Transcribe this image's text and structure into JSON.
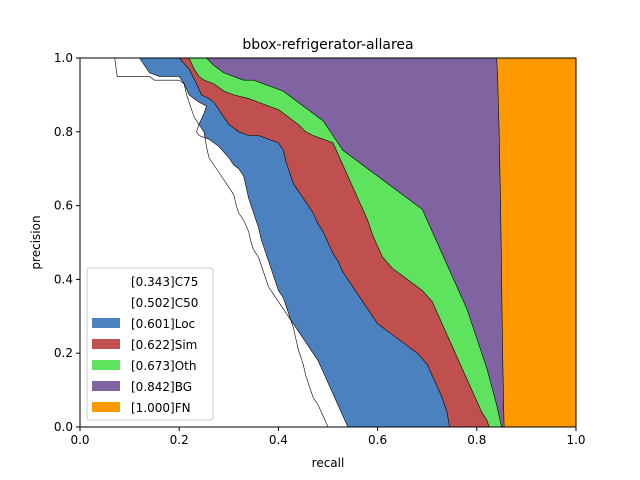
{
  "chart_data": {
    "type": "area",
    "title": "bbox-refrigerator-allarea",
    "xlabel": "recall",
    "ylabel": "precision",
    "xlim": [
      0,
      1
    ],
    "ylim": [
      0,
      1
    ],
    "x_ticks": [
      "0.0",
      "0.2",
      "0.4",
      "0.6",
      "0.8",
      "1.0"
    ],
    "y_ticks": [
      "0.0",
      "0.2",
      "0.4",
      "0.6",
      "0.8",
      "1.0"
    ],
    "grid": false,
    "legend_position": "lower-left",
    "series": [
      {
        "name": "[0.343]C75",
        "color": "#ffffff",
        "points": [
          [
            0,
            1
          ],
          [
            0.07,
            1
          ],
          [
            0.075,
            0.95
          ],
          [
            0.14,
            0.95
          ],
          [
            0.15,
            0.94
          ],
          [
            0.2,
            0.94
          ],
          [
            0.21,
            0.93
          ],
          [
            0.22,
            0.9
          ],
          [
            0.23,
            0.89
          ],
          [
            0.24,
            0.88
          ],
          [
            0.255,
            0.87
          ],
          [
            0.25,
            0.85
          ],
          [
            0.24,
            0.82
          ],
          [
            0.235,
            0.8
          ],
          [
            0.24,
            0.79
          ],
          [
            0.26,
            0.78
          ],
          [
            0.28,
            0.76
          ],
          [
            0.3,
            0.73
          ],
          [
            0.31,
            0.71
          ],
          [
            0.32,
            0.7
          ],
          [
            0.33,
            0.68
          ],
          [
            0.335,
            0.65
          ],
          [
            0.34,
            0.62
          ],
          [
            0.345,
            0.6
          ],
          [
            0.35,
            0.58
          ],
          [
            0.355,
            0.56
          ],
          [
            0.36,
            0.54
          ],
          [
            0.365,
            0.51
          ],
          [
            0.37,
            0.49
          ],
          [
            0.375,
            0.47
          ],
          [
            0.38,
            0.45
          ],
          [
            0.385,
            0.43
          ],
          [
            0.39,
            0.41
          ],
          [
            0.395,
            0.39
          ],
          [
            0.4,
            0.37
          ],
          [
            0.41,
            0.35
          ],
          [
            0.415,
            0.33
          ],
          [
            0.42,
            0.31
          ],
          [
            0.425,
            0.29
          ],
          [
            0.43,
            0.27
          ],
          [
            0.435,
            0.24
          ],
          [
            0.44,
            0.21
          ],
          [
            0.445,
            0.19
          ],
          [
            0.45,
            0.17
          ],
          [
            0.455,
            0.14
          ],
          [
            0.46,
            0.12
          ],
          [
            0.465,
            0.1
          ],
          [
            0.47,
            0.08
          ],
          [
            0.48,
            0.06
          ],
          [
            0.49,
            0.03
          ],
          [
            0.5,
            0
          ]
        ]
      },
      {
        "name": "[0.502]C50",
        "color": "#ffffff",
        "points": [
          [
            0,
            1
          ],
          [
            0.08,
            1
          ],
          [
            0.12,
            1
          ],
          [
            0.14,
            0.96
          ],
          [
            0.16,
            0.95
          ],
          [
            0.2,
            0.95
          ],
          [
            0.21,
            0.93
          ],
          [
            0.215,
            0.9
          ],
          [
            0.22,
            0.88
          ],
          [
            0.23,
            0.84
          ],
          [
            0.24,
            0.82
          ],
          [
            0.25,
            0.8
          ],
          [
            0.255,
            0.76
          ],
          [
            0.26,
            0.73
          ],
          [
            0.27,
            0.71
          ],
          [
            0.28,
            0.69
          ],
          [
            0.29,
            0.67
          ],
          [
            0.3,
            0.65
          ],
          [
            0.31,
            0.63
          ],
          [
            0.315,
            0.6
          ],
          [
            0.32,
            0.58
          ],
          [
            0.33,
            0.56
          ],
          [
            0.34,
            0.53
          ],
          [
            0.345,
            0.5
          ],
          [
            0.35,
            0.48
          ],
          [
            0.36,
            0.46
          ],
          [
            0.365,
            0.44
          ],
          [
            0.37,
            0.42
          ],
          [
            0.375,
            0.4
          ],
          [
            0.38,
            0.38
          ],
          [
            0.39,
            0.36
          ],
          [
            0.4,
            0.34
          ],
          [
            0.41,
            0.32
          ],
          [
            0.42,
            0.3
          ],
          [
            0.43,
            0.28
          ],
          [
            0.44,
            0.26
          ],
          [
            0.45,
            0.24
          ],
          [
            0.46,
            0.22
          ],
          [
            0.47,
            0.2
          ],
          [
            0.48,
            0.18
          ],
          [
            0.49,
            0.15
          ],
          [
            0.5,
            0.12
          ],
          [
            0.51,
            0.09
          ],
          [
            0.52,
            0.06
          ],
          [
            0.53,
            0.03
          ],
          [
            0.54,
            0
          ]
        ]
      },
      {
        "name": "[0.601]Loc",
        "color": "#4c81bf",
        "points": [
          [
            0,
            1
          ],
          [
            0.2,
            1
          ],
          [
            0.22,
            0.97
          ],
          [
            0.235,
            0.93
          ],
          [
            0.245,
            0.9
          ],
          [
            0.26,
            0.89
          ],
          [
            0.27,
            0.88
          ],
          [
            0.28,
            0.86
          ],
          [
            0.29,
            0.84
          ],
          [
            0.3,
            0.82
          ],
          [
            0.32,
            0.8
          ],
          [
            0.34,
            0.79
          ],
          [
            0.36,
            0.79
          ],
          [
            0.38,
            0.78
          ],
          [
            0.4,
            0.77
          ],
          [
            0.41,
            0.75
          ],
          [
            0.415,
            0.72
          ],
          [
            0.42,
            0.7
          ],
          [
            0.425,
            0.68
          ],
          [
            0.43,
            0.66
          ],
          [
            0.44,
            0.64
          ],
          [
            0.45,
            0.62
          ],
          [
            0.46,
            0.6
          ],
          [
            0.47,
            0.58
          ],
          [
            0.48,
            0.55
          ],
          [
            0.49,
            0.53
          ],
          [
            0.5,
            0.5
          ],
          [
            0.51,
            0.47
          ],
          [
            0.52,
            0.45
          ],
          [
            0.53,
            0.42
          ],
          [
            0.54,
            0.4
          ],
          [
            0.55,
            0.38
          ],
          [
            0.56,
            0.36
          ],
          [
            0.57,
            0.34
          ],
          [
            0.58,
            0.32
          ],
          [
            0.59,
            0.3
          ],
          [
            0.6,
            0.28
          ],
          [
            0.62,
            0.26
          ],
          [
            0.64,
            0.24
          ],
          [
            0.66,
            0.22
          ],
          [
            0.68,
            0.2
          ],
          [
            0.7,
            0.17
          ],
          [
            0.71,
            0.14
          ],
          [
            0.72,
            0.11
          ],
          [
            0.73,
            0.08
          ],
          [
            0.74,
            0.04
          ],
          [
            0.745,
            0
          ]
        ]
      },
      {
        "name": "[0.622]Sim",
        "color": "#c0504d",
        "points": [
          [
            0,
            1
          ],
          [
            0.22,
            1
          ],
          [
            0.23,
            0.97
          ],
          [
            0.24,
            0.95
          ],
          [
            0.25,
            0.94
          ],
          [
            0.27,
            0.93
          ],
          [
            0.29,
            0.91
          ],
          [
            0.31,
            0.9
          ],
          [
            0.34,
            0.89
          ],
          [
            0.36,
            0.88
          ],
          [
            0.38,
            0.87
          ],
          [
            0.4,
            0.86
          ],
          [
            0.42,
            0.84
          ],
          [
            0.44,
            0.82
          ],
          [
            0.455,
            0.8
          ],
          [
            0.47,
            0.79
          ],
          [
            0.49,
            0.78
          ],
          [
            0.51,
            0.77
          ],
          [
            0.52,
            0.74
          ],
          [
            0.53,
            0.71
          ],
          [
            0.54,
            0.68
          ],
          [
            0.55,
            0.65
          ],
          [
            0.56,
            0.62
          ],
          [
            0.57,
            0.59
          ],
          [
            0.58,
            0.56
          ],
          [
            0.59,
            0.52
          ],
          [
            0.6,
            0.49
          ],
          [
            0.61,
            0.46
          ],
          [
            0.63,
            0.43
          ],
          [
            0.65,
            0.41
          ],
          [
            0.67,
            0.39
          ],
          [
            0.69,
            0.37
          ],
          [
            0.71,
            0.34
          ],
          [
            0.72,
            0.31
          ],
          [
            0.73,
            0.28
          ],
          [
            0.74,
            0.25
          ],
          [
            0.75,
            0.22
          ],
          [
            0.76,
            0.19
          ],
          [
            0.77,
            0.16
          ],
          [
            0.78,
            0.13
          ],
          [
            0.79,
            0.1
          ],
          [
            0.8,
            0.07
          ],
          [
            0.81,
            0.04
          ],
          [
            0.82,
            0.02
          ],
          [
            0.825,
            0
          ]
        ]
      },
      {
        "name": "[0.673]Oth",
        "color": "#5fe35f",
        "points": [
          [
            0,
            1
          ],
          [
            0.255,
            1
          ],
          [
            0.27,
            0.98
          ],
          [
            0.29,
            0.96
          ],
          [
            0.31,
            0.95
          ],
          [
            0.33,
            0.94
          ],
          [
            0.35,
            0.94
          ],
          [
            0.37,
            0.93
          ],
          [
            0.39,
            0.92
          ],
          [
            0.41,
            0.91
          ],
          [
            0.43,
            0.89
          ],
          [
            0.45,
            0.87
          ],
          [
            0.47,
            0.85
          ],
          [
            0.49,
            0.83
          ],
          [
            0.5,
            0.81
          ],
          [
            0.51,
            0.79
          ],
          [
            0.52,
            0.77
          ],
          [
            0.53,
            0.75
          ],
          [
            0.55,
            0.73
          ],
          [
            0.57,
            0.71
          ],
          [
            0.59,
            0.69
          ],
          [
            0.61,
            0.67
          ],
          [
            0.63,
            0.65
          ],
          [
            0.65,
            0.63
          ],
          [
            0.67,
            0.61
          ],
          [
            0.69,
            0.59
          ],
          [
            0.7,
            0.56
          ],
          [
            0.71,
            0.53
          ],
          [
            0.72,
            0.5
          ],
          [
            0.73,
            0.47
          ],
          [
            0.74,
            0.44
          ],
          [
            0.75,
            0.41
          ],
          [
            0.76,
            0.38
          ],
          [
            0.77,
            0.35
          ],
          [
            0.78,
            0.32
          ],
          [
            0.79,
            0.28
          ],
          [
            0.8,
            0.24
          ],
          [
            0.81,
            0.2
          ],
          [
            0.82,
            0.16
          ],
          [
            0.83,
            0.11
          ],
          [
            0.84,
            0.06
          ],
          [
            0.85,
            0
          ]
        ]
      },
      {
        "name": "[0.842]BG",
        "color": "#8064a2",
        "points": [
          [
            0,
            1
          ],
          [
            0.84,
            1
          ],
          [
            0.842,
            0.95
          ],
          [
            0.845,
            0.8
          ],
          [
            0.848,
            0.6
          ],
          [
            0.85,
            0.4
          ],
          [
            0.852,
            0.2
          ],
          [
            0.855,
            0
          ]
        ]
      },
      {
        "name": "[1.000]FN",
        "color": "#ff9900",
        "points": [
          [
            0,
            1
          ],
          [
            1,
            1
          ],
          [
            1,
            0
          ]
        ]
      }
    ]
  }
}
